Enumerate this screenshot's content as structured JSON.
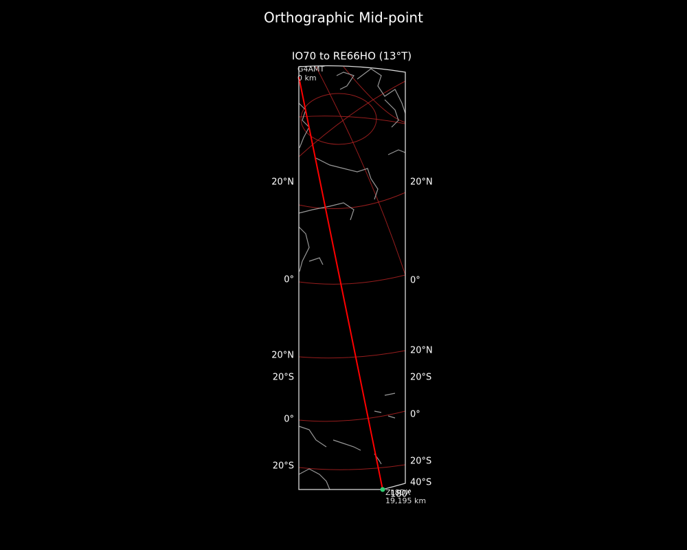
{
  "title": "Orthographic Mid-point",
  "map": {
    "subtitle": "IO70 to RE66HO (13°T)",
    "start": {
      "call": "G4AMT",
      "distance": "0 km"
    },
    "end": {
      "call": "ZL8DX",
      "distance": "19,195 km"
    },
    "left_labels": [
      "20°N",
      "0°",
      "20°N",
      "20°S",
      "0°",
      "20°S"
    ],
    "right_labels": [
      "20°N",
      "0°",
      "20°N",
      "20°S",
      "0°",
      "20°S",
      "40°S",
      "180°"
    ]
  }
}
